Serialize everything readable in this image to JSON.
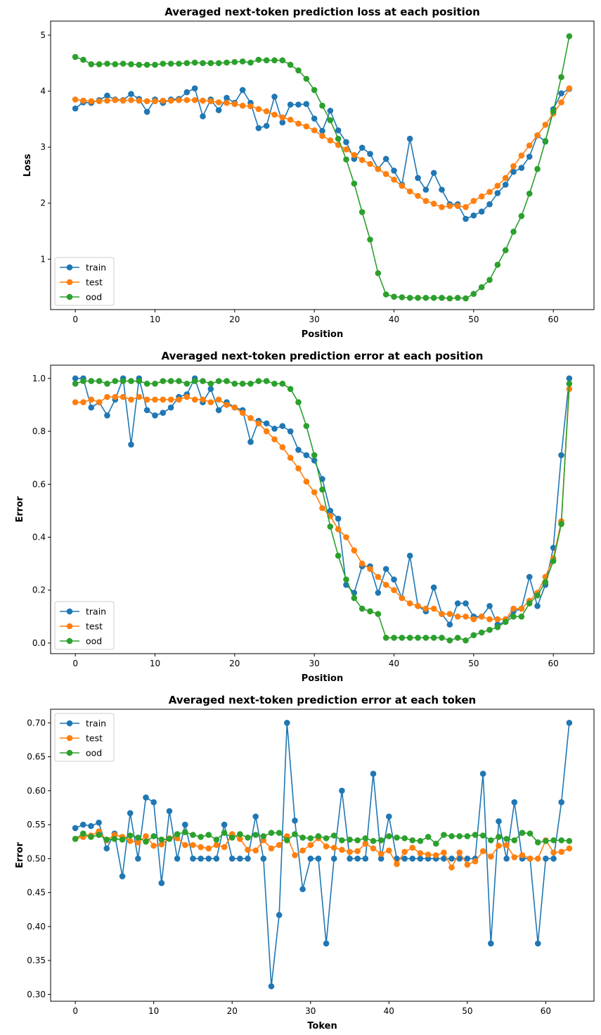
{
  "colors": {
    "train": "#1f77b4",
    "test": "#ff7f0e",
    "ood": "#2ca02c"
  },
  "chart_data": [
    {
      "type": "line",
      "title": "Averaged next-token prediction loss at each position",
      "xlabel": "Position",
      "ylabel": "Loss",
      "xlim": [
        -3.1,
        65.1
      ],
      "ylim": [
        0.1,
        5.25
      ],
      "xticks": [
        0,
        10,
        20,
        30,
        40,
        50,
        60
      ],
      "yticks": [
        1,
        2,
        3,
        4,
        5
      ],
      "tick_decimals": 0,
      "grid": false,
      "legend_position": "lower-left",
      "x_start": 0,
      "series": [
        {
          "name": "train",
          "color": "#1f77b4",
          "values": [
            3.69,
            3.8,
            3.79,
            3.84,
            3.92,
            3.85,
            3.84,
            3.95,
            3.86,
            3.63,
            3.85,
            3.79,
            3.85,
            3.86,
            3.98,
            4.05,
            3.55,
            3.85,
            3.66,
            3.88,
            3.79,
            4.02,
            3.79,
            3.34,
            3.38,
            3.9,
            3.44,
            3.76,
            3.76,
            3.77,
            3.51,
            3.29,
            3.65,
            3.3,
            3.09,
            2.79,
            2.99,
            2.88,
            2.61,
            2.79,
            2.58,
            2.33,
            3.15,
            2.45,
            2.24,
            2.54,
            2.24,
            1.98,
            1.98,
            1.72,
            1.78,
            1.85,
            1.98,
            2.18,
            2.33,
            2.56,
            2.63,
            2.83,
            3.21,
            3.1,
            3.68,
            3.96,
            4.04
          ]
        },
        {
          "name": "test",
          "color": "#ff7f0e",
          "values": [
            3.85,
            3.83,
            3.82,
            3.82,
            3.83,
            3.84,
            3.83,
            3.84,
            3.83,
            3.82,
            3.82,
            3.83,
            3.83,
            3.84,
            3.84,
            3.84,
            3.83,
            3.82,
            3.8,
            3.79,
            3.77,
            3.74,
            3.73,
            3.68,
            3.64,
            3.58,
            3.53,
            3.49,
            3.42,
            3.37,
            3.3,
            3.2,
            3.12,
            3.04,
            2.96,
            2.86,
            2.77,
            2.7,
            2.61,
            2.52,
            2.42,
            2.31,
            2.21,
            2.13,
            2.04,
            1.99,
            1.93,
            1.95,
            1.95,
            1.93,
            2.04,
            2.12,
            2.2,
            2.31,
            2.45,
            2.66,
            2.85,
            3.03,
            3.21,
            3.4,
            3.6,
            3.8,
            4.05
          ]
        },
        {
          "name": "ood",
          "color": "#2ca02c",
          "values": [
            4.61,
            4.56,
            4.48,
            4.48,
            4.49,
            4.48,
            4.49,
            4.48,
            4.47,
            4.47,
            4.47,
            4.49,
            4.49,
            4.49,
            4.5,
            4.51,
            4.5,
            4.5,
            4.5,
            4.51,
            4.52,
            4.53,
            4.51,
            4.56,
            4.55,
            4.55,
            4.55,
            4.47,
            4.37,
            4.22,
            4.02,
            3.74,
            3.48,
            3.15,
            2.78,
            2.35,
            1.84,
            1.35,
            0.75,
            0.37,
            0.33,
            0.32,
            0.31,
            0.31,
            0.31,
            0.31,
            0.31,
            0.3,
            0.31,
            0.3,
            0.38,
            0.5,
            0.63,
            0.9,
            1.16,
            1.49,
            1.77,
            2.17,
            2.61,
            3.11,
            3.64,
            4.25,
            4.98
          ]
        }
      ]
    },
    {
      "type": "line",
      "title": "Averaged next-token prediction error at each position",
      "xlabel": "Position",
      "ylabel": "Error",
      "xlim": [
        -3.1,
        65.1
      ],
      "ylim": [
        -0.04,
        1.05
      ],
      "xticks": [
        0,
        10,
        20,
        30,
        40,
        50,
        60
      ],
      "yticks": [
        0.0,
        0.2,
        0.4,
        0.6,
        0.8,
        1.0
      ],
      "tick_decimals": 1,
      "grid": false,
      "legend_position": "lower-left",
      "x_start": 0,
      "series": [
        {
          "name": "train",
          "color": "#1f77b4",
          "values": [
            1.0,
            1.0,
            0.89,
            0.91,
            0.86,
            0.92,
            1.0,
            0.75,
            1.0,
            0.88,
            0.86,
            0.87,
            0.89,
            0.93,
            0.94,
            1.0,
            0.91,
            0.96,
            0.88,
            0.91,
            0.89,
            0.88,
            0.76,
            0.84,
            0.83,
            0.81,
            0.82,
            0.8,
            0.73,
            0.71,
            0.69,
            0.62,
            0.5,
            0.47,
            0.22,
            0.19,
            0.29,
            0.29,
            0.19,
            0.28,
            0.24,
            0.17,
            0.33,
            0.14,
            0.12,
            0.21,
            0.11,
            0.07,
            0.15,
            0.15,
            0.1,
            0.1,
            0.14,
            0.07,
            0.08,
            0.12,
            0.13,
            0.25,
            0.14,
            0.22,
            0.36,
            0.71,
            1.0
          ]
        },
        {
          "name": "test",
          "color": "#ff7f0e",
          "values": [
            0.91,
            0.91,
            0.92,
            0.91,
            0.93,
            0.93,
            0.93,
            0.92,
            0.93,
            0.92,
            0.92,
            0.92,
            0.92,
            0.92,
            0.93,
            0.92,
            0.92,
            0.91,
            0.92,
            0.9,
            0.89,
            0.87,
            0.85,
            0.83,
            0.8,
            0.77,
            0.74,
            0.7,
            0.66,
            0.61,
            0.57,
            0.51,
            0.48,
            0.43,
            0.4,
            0.35,
            0.3,
            0.28,
            0.25,
            0.22,
            0.2,
            0.17,
            0.15,
            0.14,
            0.13,
            0.13,
            0.11,
            0.11,
            0.1,
            0.1,
            0.09,
            0.1,
            0.09,
            0.09,
            0.09,
            0.13,
            0.13,
            0.16,
            0.19,
            0.25,
            0.32,
            0.46,
            0.96
          ]
        },
        {
          "name": "ood",
          "color": "#2ca02c",
          "values": [
            0.98,
            0.99,
            0.99,
            0.99,
            0.98,
            0.99,
            0.99,
            0.99,
            0.99,
            0.98,
            0.98,
            0.99,
            0.99,
            0.99,
            0.98,
            0.99,
            0.99,
            0.98,
            0.99,
            0.99,
            0.98,
            0.98,
            0.98,
            0.99,
            0.99,
            0.98,
            0.98,
            0.96,
            0.91,
            0.82,
            0.71,
            0.58,
            0.44,
            0.33,
            0.24,
            0.17,
            0.13,
            0.12,
            0.11,
            0.02,
            0.02,
            0.02,
            0.02,
            0.02,
            0.02,
            0.02,
            0.02,
            0.01,
            0.02,
            0.01,
            0.03,
            0.04,
            0.05,
            0.06,
            0.08,
            0.1,
            0.1,
            0.15,
            0.18,
            0.23,
            0.31,
            0.45,
            0.98
          ]
        }
      ]
    },
    {
      "type": "line",
      "title": "Averaged next-token prediction error at each token",
      "xlabel": "Token",
      "ylabel": "Error",
      "xlim": [
        -3.15,
        66.15
      ],
      "ylim": [
        0.29,
        0.72
      ],
      "xticks": [
        0,
        10,
        20,
        30,
        40,
        50,
        60
      ],
      "yticks": [
        0.3,
        0.35,
        0.4,
        0.45,
        0.5,
        0.55,
        0.6,
        0.65,
        0.7
      ],
      "tick_decimals": 2,
      "grid": false,
      "legend_position": "upper-left",
      "x_start": 0,
      "series": [
        {
          "name": "train",
          "color": "#1f77b4",
          "values": [
            0.545,
            0.55,
            0.548,
            0.553,
            0.515,
            0.537,
            0.474,
            0.567,
            0.5,
            0.59,
            0.583,
            0.464,
            0.57,
            0.5,
            0.55,
            0.5,
            0.5,
            0.5,
            0.5,
            0.55,
            0.5,
            0.5,
            0.5,
            0.562,
            0.5,
            0.312,
            0.417,
            0.7,
            0.556,
            0.455,
            0.5,
            0.5,
            0.375,
            0.5,
            0.6,
            0.5,
            0.5,
            0.5,
            0.625,
            0.5,
            0.562,
            0.5,
            0.5,
            0.5,
            0.5,
            0.5,
            0.5,
            0.5,
            0.5,
            0.5,
            0.5,
            0.5,
            0.625,
            0.375,
            0.555,
            0.5,
            0.583,
            0.5,
            0.5,
            0.375,
            0.5,
            0.5,
            0.583,
            0.7
          ]
        },
        {
          "name": "test",
          "color": "#ff7f0e",
          "values": [
            0.529,
            0.532,
            0.534,
            0.54,
            0.527,
            0.535,
            0.532,
            0.526,
            0.524,
            0.533,
            0.519,
            0.521,
            0.53,
            0.53,
            0.52,
            0.52,
            0.517,
            0.515,
            0.52,
            0.517,
            0.536,
            0.529,
            0.513,
            0.512,
            0.527,
            0.515,
            0.52,
            0.533,
            0.505,
            0.512,
            0.52,
            0.53,
            0.518,
            0.516,
            0.513,
            0.51,
            0.511,
            0.522,
            0.515,
            0.507,
            0.512,
            0.492,
            0.51,
            0.516,
            0.508,
            0.506,
            0.505,
            0.509,
            0.487,
            0.509,
            0.491,
            0.496,
            0.511,
            0.503,
            0.519,
            0.52,
            0.502,
            0.505,
            0.5,
            0.5,
            0.527,
            0.509,
            0.51,
            0.515
          ]
        },
        {
          "name": "ood",
          "color": "#2ca02c",
          "values": [
            0.529,
            0.537,
            0.532,
            0.535,
            0.528,
            0.529,
            0.528,
            0.534,
            0.531,
            0.525,
            0.533,
            0.528,
            0.529,
            0.536,
            0.539,
            0.535,
            0.532,
            0.535,
            0.528,
            0.538,
            0.531,
            0.536,
            0.531,
            0.535,
            0.533,
            0.538,
            0.538,
            0.527,
            0.536,
            0.531,
            0.53,
            0.533,
            0.53,
            0.534,
            0.527,
            0.528,
            0.527,
            0.53,
            0.526,
            0.527,
            0.533,
            0.531,
            0.53,
            0.527,
            0.526,
            0.532,
            0.522,
            0.535,
            0.533,
            0.533,
            0.533,
            0.535,
            0.534,
            0.527,
            0.532,
            0.529,
            0.527,
            0.538,
            0.537,
            0.524,
            0.526,
            0.527,
            0.527,
            0.526
          ]
        }
      ]
    }
  ]
}
